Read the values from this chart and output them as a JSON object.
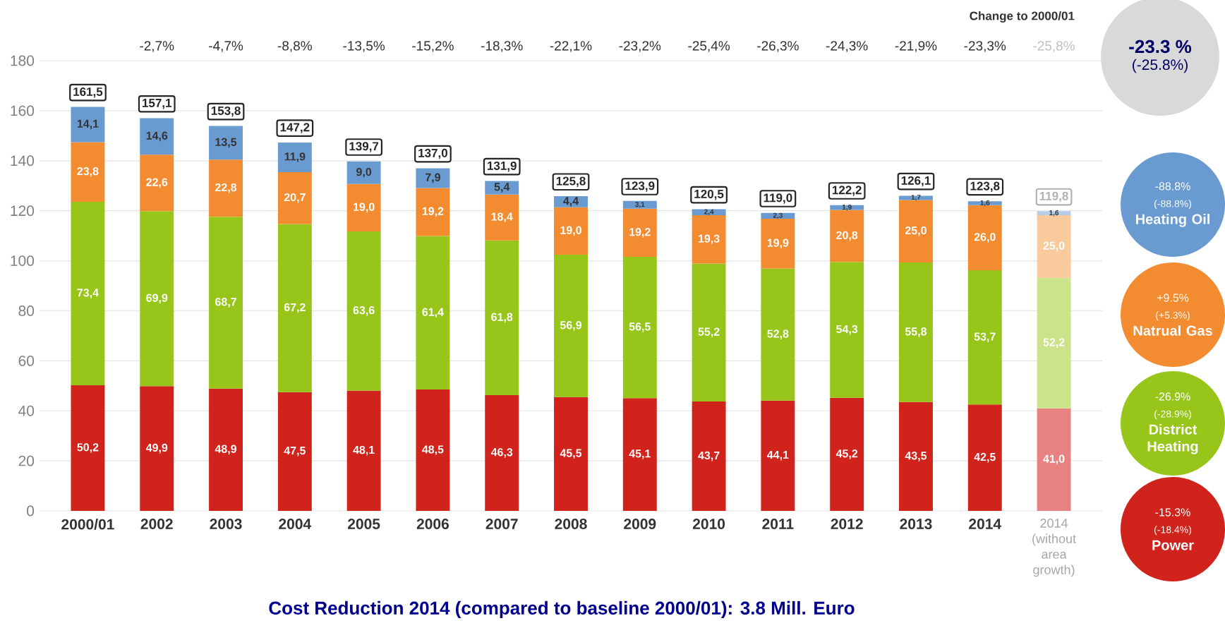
{
  "chart_data": {
    "type": "bar",
    "stacked": true,
    "title": "Cost Reduction 2014 (compared to baseline 2000/01): 3.8 Mill. Euro",
    "categories": [
      "2000/01",
      "2002",
      "2003",
      "2004",
      "2005",
      "2006",
      "2007",
      "2008",
      "2009",
      "2010",
      "2011",
      "2012",
      "2013",
      "2014",
      "2014 (without area growth)"
    ],
    "ylim": [
      0,
      180
    ],
    "yticks": [
      0,
      20,
      40,
      60,
      80,
      100,
      120,
      140,
      160,
      180
    ],
    "grid": "y",
    "legend": "right",
    "series": [
      {
        "name": "Power",
        "color": "#d0231c",
        "colors": [
          "#d0231c",
          "#d0231c",
          "#d0231c",
          "#d0231c",
          "#d0231c",
          "#d0231c",
          "#d0231c",
          "#d0231c",
          "#d0231c",
          "#d0231c",
          "#d0231c",
          "#d0231c",
          "#d0231c",
          "#d0231c",
          "#e88282"
        ],
        "values": [
          50.2,
          49.9,
          48.9,
          47.5,
          48.1,
          48.5,
          46.3,
          45.5,
          45.1,
          43.7,
          44.1,
          45.2,
          43.5,
          42.5,
          41.0
        ],
        "value_labels": [
          "50,2",
          "49,9",
          "48,9",
          "47,5",
          "48,1",
          "48,5",
          "46,3",
          "45,5",
          "45,1",
          "43,7",
          "44,1",
          "45,2",
          "43,5",
          "42,5",
          "41,0"
        ]
      },
      {
        "name": "District Heating",
        "color": "#97c51a",
        "colors": [
          "#97c51a",
          "#97c51a",
          "#97c51a",
          "#97c51a",
          "#97c51a",
          "#97c51a",
          "#97c51a",
          "#97c51a",
          "#97c51a",
          "#97c51a",
          "#97c51a",
          "#97c51a",
          "#97c51a",
          "#97c51a",
          "#cbe48c"
        ],
        "values": [
          73.4,
          69.9,
          68.7,
          67.2,
          63.6,
          61.4,
          61.8,
          56.9,
          56.5,
          55.2,
          52.8,
          54.3,
          55.8,
          53.7,
          52.2
        ],
        "value_labels": [
          "73,4",
          "69,9",
          "68,7",
          "67,2",
          "63,6",
          "61,4",
          "61,8",
          "56,9",
          "56,5",
          "55,2",
          "52,8",
          "54,3",
          "55,8",
          "53,7",
          "52,2"
        ]
      },
      {
        "name": "Natrual Gas",
        "color": "#f38b31",
        "colors": [
          "#f38b31",
          "#f38b31",
          "#f38b31",
          "#f38b31",
          "#f38b31",
          "#f38b31",
          "#f38b31",
          "#f38b31",
          "#f38b31",
          "#f38b31",
          "#f38b31",
          "#f38b31",
          "#f38b31",
          "#f38b31",
          "#f9ca9c"
        ],
        "values": [
          23.8,
          22.6,
          22.8,
          20.7,
          19.0,
          19.2,
          18.4,
          19.0,
          19.2,
          19.3,
          19.9,
          20.8,
          25.0,
          26.0,
          25.0
        ],
        "value_labels": [
          "23,8",
          "22,6",
          "22,8",
          "20,7",
          "19,0",
          "19,2",
          "18,4",
          "19,0",
          "19,2",
          "19,3",
          "19,9",
          "20,8",
          "25,0",
          "26,0",
          "25,0"
        ]
      },
      {
        "name": "Heating Oil",
        "color": "#6a9bd0",
        "colors": [
          "#6a9bd0",
          "#6a9bd0",
          "#6a9bd0",
          "#6a9bd0",
          "#6a9bd0",
          "#6a9bd0",
          "#6a9bd0",
          "#6a9bd0",
          "#6a9bd0",
          "#6a9bd0",
          "#6a9bd0",
          "#6a9bd0",
          "#6a9bd0",
          "#6a9bd0",
          "#b5cde8"
        ],
        "values": [
          14.1,
          14.6,
          13.5,
          11.9,
          9.0,
          7.9,
          5.4,
          4.4,
          3.1,
          2.4,
          2.3,
          1.9,
          1.7,
          1.6,
          1.6
        ],
        "value_labels": [
          "14,1",
          "14,6",
          "13,5",
          "11,9",
          "9,0",
          "7,9",
          "5,4",
          "4,4",
          "3,1",
          "2,4",
          "2,3",
          "1,9",
          "1,7",
          "1,6",
          "1,6"
        ]
      }
    ],
    "totals": [
      "161,5",
      "157,1",
      "153,8",
      "147,2",
      "139,7",
      "137,0",
      "131,9",
      "125,8",
      "123,9",
      "120,5",
      "119,0",
      "122,2",
      "126,1",
      "123,8",
      "119,8"
    ],
    "annotations": [
      "Change to 2000/01",
      "-2,7%",
      "-4,7%",
      "-8,8%",
      "-13,5%",
      "-15,2%",
      "-18,3%",
      "-22,1%",
      "-23,2%",
      "-25,4%",
      "-26,3%",
      "-24,3%",
      "-21,9%",
      "-23,3%",
      "-25,8%",
      "-23.3 %",
      "(-25.8%)",
      "-88.8%",
      "(-88.8%)",
      "+9.5%",
      "(+5.3%)",
      "-26.9%",
      "(-28.9%)",
      "-15.3%",
      "(-18.4%)"
    ]
  }
}
